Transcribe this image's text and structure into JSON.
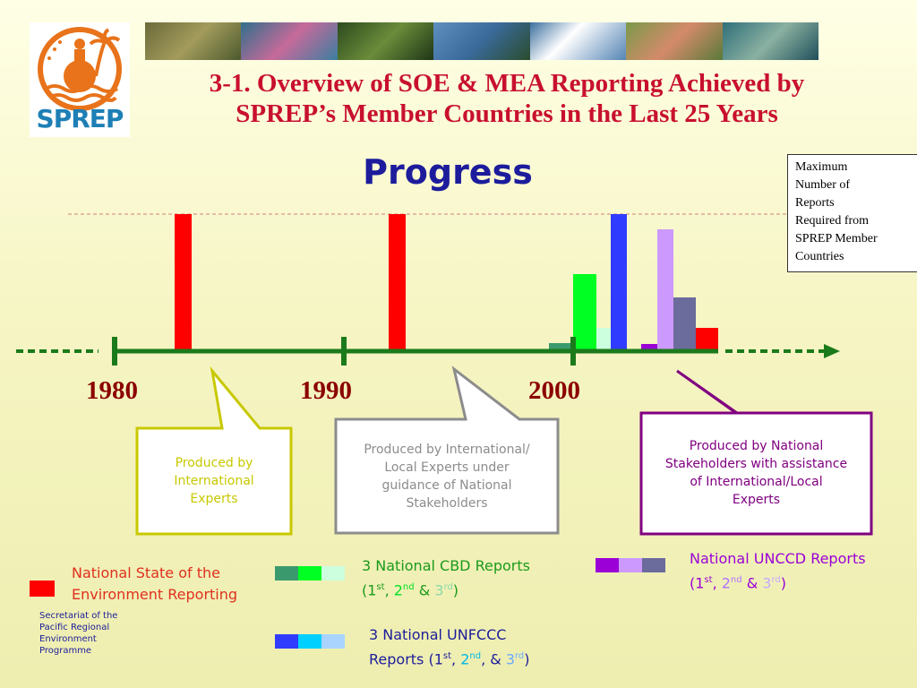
{
  "logo": {
    "text": "SPREP"
  },
  "header": {
    "title_line1": "3-1. Overview of SOE & MEA Reporting Achieved by",
    "title_line2": "SPREP’s Member Countries in the Last 25 Years",
    "subtitle": "Progress"
  },
  "max_box": {
    "lines": [
      "Maximum",
      "Number of",
      "Reports",
      "Required from",
      "SPREP Member",
      "Countries"
    ]
  },
  "timeline": {
    "years": [
      "1980",
      "1990",
      "2000"
    ]
  },
  "callouts": [
    {
      "lines": [
        "Produced by",
        "International",
        "Experts"
      ],
      "color": "#c8c800"
    },
    {
      "lines": [
        "Produced by International/",
        "Local Experts under",
        "guidance of National",
        "Stakeholders"
      ],
      "color": "#8c8c8c"
    },
    {
      "lines": [
        "Produced by National",
        "Stakeholders with assistance",
        "of International/Local",
        "Experts"
      ],
      "color": "#800080"
    }
  ],
  "legend": {
    "soe": {
      "line1": "National State of the",
      "line2": "Environment Reporting",
      "color": "#ff0000"
    },
    "cbd": {
      "prefix": "3 National CBD Reports",
      "o1": "(1",
      "s1": "st",
      "sep1": ", ",
      "n2": "2",
      "s2": "nd",
      "amp": " & ",
      "n3": "3",
      "s3": "rd",
      "close": ")"
    },
    "unfccc": {
      "line1": "3 National UNFCCC",
      "prefix": "Reports (1",
      "s1": "st",
      "sep1": ", ",
      "n2": "2",
      "s2": "nd",
      "amp": ", & ",
      "n3": "3",
      "s3": "rd",
      "close": ")"
    },
    "unccd": {
      "prefix": "National UNCCD Reports",
      "o1": "(1",
      "s1": "st",
      "sep1": ", ",
      "n2": "2",
      "s2": "nd",
      "amp": " & ",
      "n3": "3",
      "s3": "rd",
      "close": ")"
    }
  },
  "footer": {
    "secretariat": [
      "Secretariat of the",
      "Pacific Regional",
      "Environment",
      "Programme"
    ]
  },
  "colors": {
    "soe": "#ff0000",
    "cbd": [
      "#3a9a6e",
      "#00ff22",
      "#ccffdd"
    ],
    "unfccc": [
      "#2f3cff",
      "#00d0ff",
      "#a8d4ff"
    ],
    "unccd": [
      "#9b00d6",
      "#cc99ff",
      "#6b6b9c"
    ],
    "timeline": "#1b7a1b"
  }
}
